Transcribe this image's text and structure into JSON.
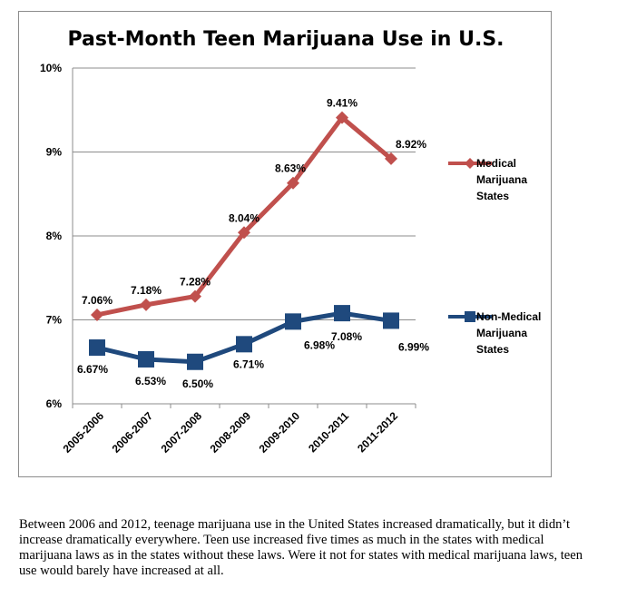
{
  "chart_data": {
    "type": "line",
    "title": "Past-Month Teen Marijuana Use in U.S.",
    "categories": [
      "2005-2006",
      "2006-2007",
      "2007-2008",
      "2008-2009",
      "2009-2010",
      "2010-2011",
      "2011-2012"
    ],
    "series": [
      {
        "name": "Medical Marijuana States",
        "name_lines": [
          "Medical",
          "Marijuana",
          "States"
        ],
        "values": [
          7.06,
          7.18,
          7.28,
          8.04,
          8.63,
          9.41,
          8.92
        ],
        "labels": [
          "7.06%",
          "7.18%",
          "7.28%",
          "8.04%",
          "8.63%",
          "9.41%",
          "8.92%"
        ],
        "color": "#c0504d",
        "marker": "diamond"
      },
      {
        "name": "Non-Medical Marijuana States",
        "name_lines": [
          "Non-Medical",
          "Marijuana",
          "States"
        ],
        "values": [
          6.67,
          6.53,
          6.5,
          6.71,
          6.98,
          7.08,
          6.99
        ],
        "labels": [
          "6.67%",
          "6.53%",
          "6.50%",
          "6.71%",
          "6.98%",
          "7.08%",
          "6.99%"
        ],
        "color": "#1f497d",
        "marker": "square"
      }
    ],
    "yticks": [
      6,
      7,
      8,
      9,
      10
    ],
    "ytick_labels": [
      "6%",
      "7%",
      "8%",
      "9%",
      "10%"
    ],
    "ylim": [
      6,
      10
    ],
    "grid": true,
    "legend": "right"
  },
  "caption": "Between 2006 and 2012, teenage marijuana use in the United States increased dramatically, but it didn’t increase dramatically everywhere. Teen use increased five times as much in the states with medical marijuana laws as in the states without these laws. Were it not for states with medical marijuana laws, teen use would barely have increased at all."
}
